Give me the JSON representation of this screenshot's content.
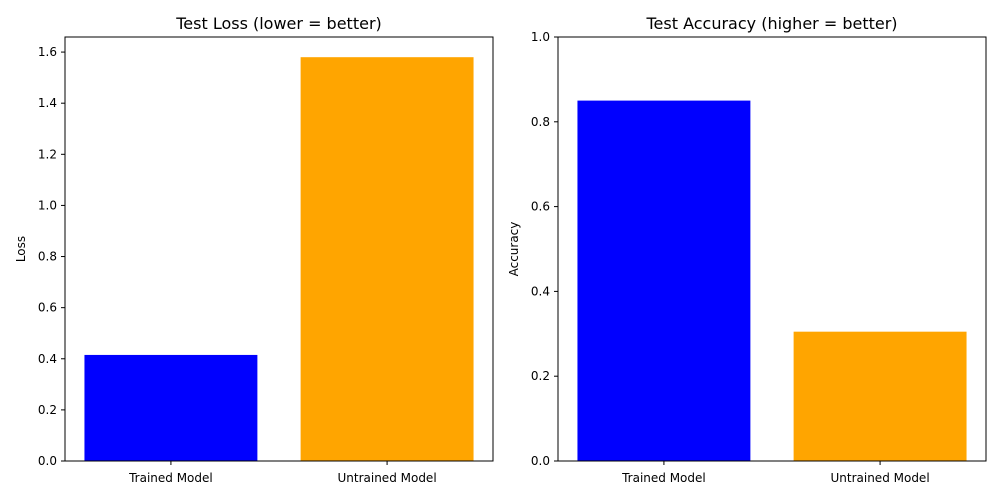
{
  "chart_data": [
    {
      "type": "bar",
      "title": "Test Loss (lower = better)",
      "xlabel": "",
      "ylabel": "Loss",
      "categories": [
        "Trained Model",
        "Untrained Model"
      ],
      "values": [
        0.415,
        1.58
      ],
      "colors": [
        "#0000ff",
        "#ffa500"
      ],
      "ylim": [
        0,
        1.659
      ],
      "yticks": [
        0.0,
        0.2,
        0.4,
        0.6,
        0.8,
        1.0,
        1.2,
        1.4,
        1.6
      ],
      "ytick_labels": [
        "0.0",
        "0.2",
        "0.4",
        "0.6",
        "0.8",
        "1.0",
        "1.2",
        "1.4",
        "1.6"
      ],
      "grid": false
    },
    {
      "type": "bar",
      "title": "Test Accuracy (higher = better)",
      "xlabel": "",
      "ylabel": "Accuracy",
      "categories": [
        "Trained Model",
        "Untrained Model"
      ],
      "values": [
        0.85,
        0.305
      ],
      "colors": [
        "#0000ff",
        "#ffa500"
      ],
      "ylim": [
        0,
        1.0
      ],
      "yticks": [
        0.0,
        0.2,
        0.4,
        0.6,
        0.8,
        1.0
      ],
      "ytick_labels": [
        "0.0",
        "0.2",
        "0.4",
        "0.6",
        "0.8",
        "1.0"
      ],
      "grid": false
    }
  ]
}
